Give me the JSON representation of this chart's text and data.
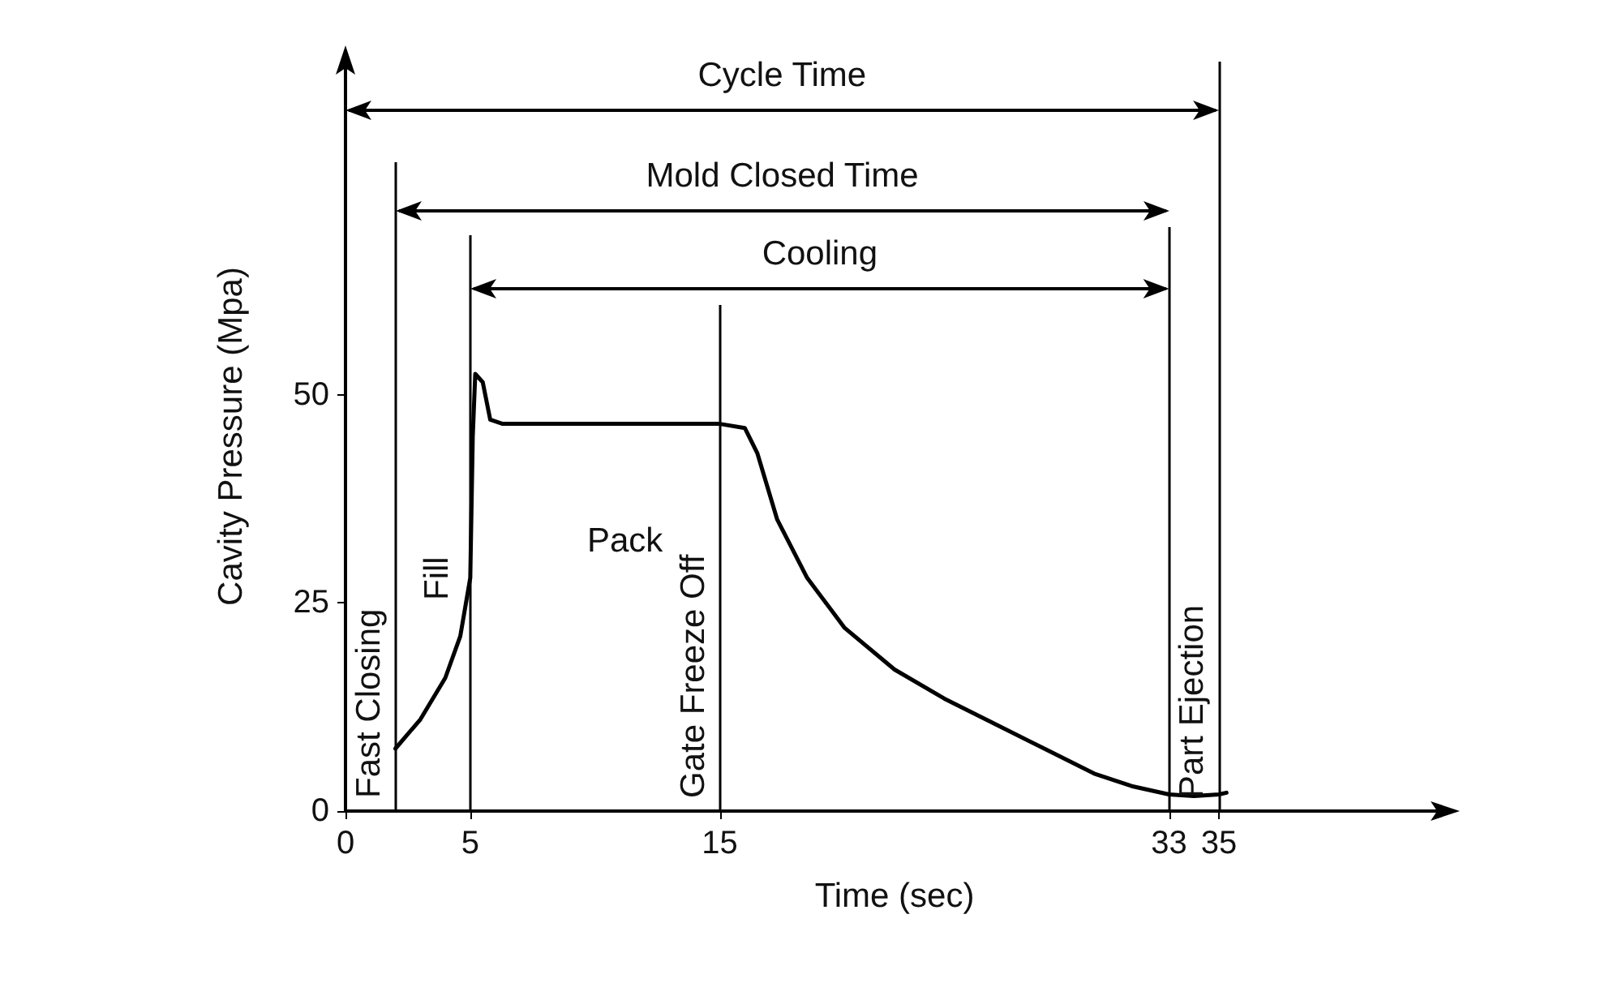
{
  "chart_data": {
    "type": "line",
    "xlabel": "Time (sec)",
    "ylabel": "Cavity Pressure (Mpa)",
    "series": [
      {
        "color": "#000000",
        "x": [
          2,
          3,
          4,
          4.6,
          5,
          5.1,
          5.2,
          5.5,
          5.8,
          6.3,
          15,
          16,
          16.5,
          17.3,
          18.5,
          20,
          22,
          24,
          26,
          28,
          30,
          31.5,
          33,
          34,
          35,
          35.3
        ],
        "values": [
          7.5,
          11,
          16,
          21,
          28,
          45,
          52.5,
          51.5,
          47,
          46.5,
          46.5,
          46,
          43,
          35,
          28,
          22,
          17,
          13.5,
          10.5,
          7.5,
          4.5,
          3,
          2,
          1.8,
          2,
          2.2
        ]
      }
    ],
    "xlim": [
      0,
      44
    ],
    "xticks": [
      0,
      5,
      15,
      33,
      35
    ],
    "ylim": [
      0,
      90
    ],
    "yticks": [
      0,
      25,
      50
    ],
    "grid": false,
    "marker": "none",
    "line_style": "solid",
    "ref_lines": [
      {
        "axis": "x",
        "value": 2,
        "label": "Fast Closing",
        "color": "#000000"
      },
      {
        "axis": "x",
        "value": 5,
        "label": null,
        "color": "#000000"
      },
      {
        "axis": "x",
        "value": 15,
        "label": "Gate Freeze Off",
        "color": "#000000"
      },
      {
        "axis": "x",
        "value": 33,
        "label": null,
        "color": "#000000"
      },
      {
        "axis": "x",
        "value": 35,
        "label": "Part Ejection",
        "color": "#000000"
      }
    ],
    "annotations": [
      "Cycle Time",
      "Mold Closed Time",
      "Cooling",
      "Fill",
      "Pack"
    ]
  }
}
